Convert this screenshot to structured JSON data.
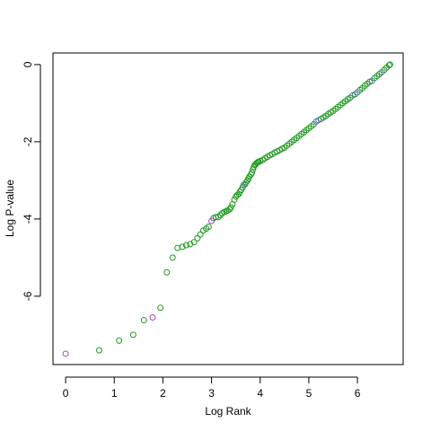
{
  "chart_data": {
    "type": "scatter",
    "x_label": "Log Rank",
    "y_label": "Log P-value",
    "xlim": [
      -0.26,
      6.94
    ],
    "ylim": [
      -7.77,
      0.3
    ],
    "xticks": [
      0,
      1,
      2,
      3,
      4,
      5,
      6
    ],
    "yticks": [
      -6,
      -4,
      -2,
      0
    ],
    "series": [
      {
        "color": "#1f9a1f",
        "x": [
          0.69,
          1.1,
          1.39,
          1.61,
          1.95,
          2.08,
          2.2,
          2.3,
          2.4,
          2.48,
          2.56,
          2.64,
          2.71,
          2.77,
          2.83,
          2.89,
          2.94,
          3.04,
          3.09,
          3.14,
          3.18,
          3.22,
          3.26,
          3.3,
          3.33,
          3.37,
          3.4,
          3.43,
          3.47,
          3.5,
          3.53,
          3.56,
          3.58,
          3.61,
          3.64,
          3.69,
          3.71,
          3.74,
          3.76,
          3.78,
          3.81,
          3.83,
          3.85,
          3.87,
          3.89,
          3.91,
          3.93,
          3.95,
          3.97,
          4.0,
          4.05,
          4.1,
          4.15,
          4.2,
          4.25,
          4.3,
          4.35,
          4.4,
          4.45,
          4.5,
          4.55,
          4.6,
          4.65,
          4.7,
          4.75,
          4.8,
          4.85,
          4.9,
          4.95,
          5.0,
          5.05,
          5.1,
          5.25,
          5.3,
          5.35,
          5.4,
          5.45,
          5.5,
          5.55,
          5.6,
          5.65,
          5.7,
          5.75,
          5.8,
          5.85,
          5.95,
          6.05,
          6.1,
          6.15,
          6.2,
          6.25,
          6.35,
          6.4,
          6.45,
          6.55,
          6.6,
          6.65,
          6.67
        ],
        "values": [
          -7.4,
          -7.15,
          -7.0,
          -6.62,
          -6.3,
          -5.38,
          -5.0,
          -4.75,
          -4.72,
          -4.68,
          -4.65,
          -4.6,
          -4.5,
          -4.4,
          -4.3,
          -4.25,
          -4.2,
          -3.98,
          -3.95,
          -3.95,
          -3.9,
          -3.85,
          -3.82,
          -3.8,
          -3.78,
          -3.75,
          -3.7,
          -3.62,
          -3.5,
          -3.42,
          -3.38,
          -3.35,
          -3.3,
          -3.25,
          -3.18,
          -3.1,
          -3.05,
          -3.0,
          -2.95,
          -2.9,
          -2.85,
          -2.8,
          -2.72,
          -2.65,
          -2.6,
          -2.58,
          -2.55,
          -2.53,
          -2.52,
          -2.5,
          -2.47,
          -2.43,
          -2.39,
          -2.35,
          -2.32,
          -2.28,
          -2.25,
          -2.22,
          -2.18,
          -2.15,
          -2.1,
          -2.05,
          -2.0,
          -1.95,
          -1.9,
          -1.85,
          -1.8,
          -1.75,
          -1.7,
          -1.65,
          -1.6,
          -1.55,
          -1.41,
          -1.37,
          -1.33,
          -1.28,
          -1.24,
          -1.2,
          -1.15,
          -1.1,
          -1.05,
          -1.0,
          -0.95,
          -0.9,
          -0.86,
          -0.77,
          -0.66,
          -0.61,
          -0.55,
          -0.5,
          -0.45,
          -0.35,
          -0.3,
          -0.25,
          -0.14,
          -0.08,
          -0.02,
          0
        ]
      },
      {
        "color": "#b040d0",
        "x": [
          0,
          1.79,
          3.0
        ],
        "values": [
          -7.49,
          -6.55,
          -4.05
        ]
      },
      {
        "color": "#5a6fb0",
        "x": [
          3.66,
          5.15,
          5.2,
          5.9,
          6.0,
          6.3,
          6.5
        ],
        "values": [
          -3.12,
          -1.48,
          -1.44,
          -0.8,
          -0.72,
          -0.42,
          -0.2
        ]
      }
    ]
  }
}
